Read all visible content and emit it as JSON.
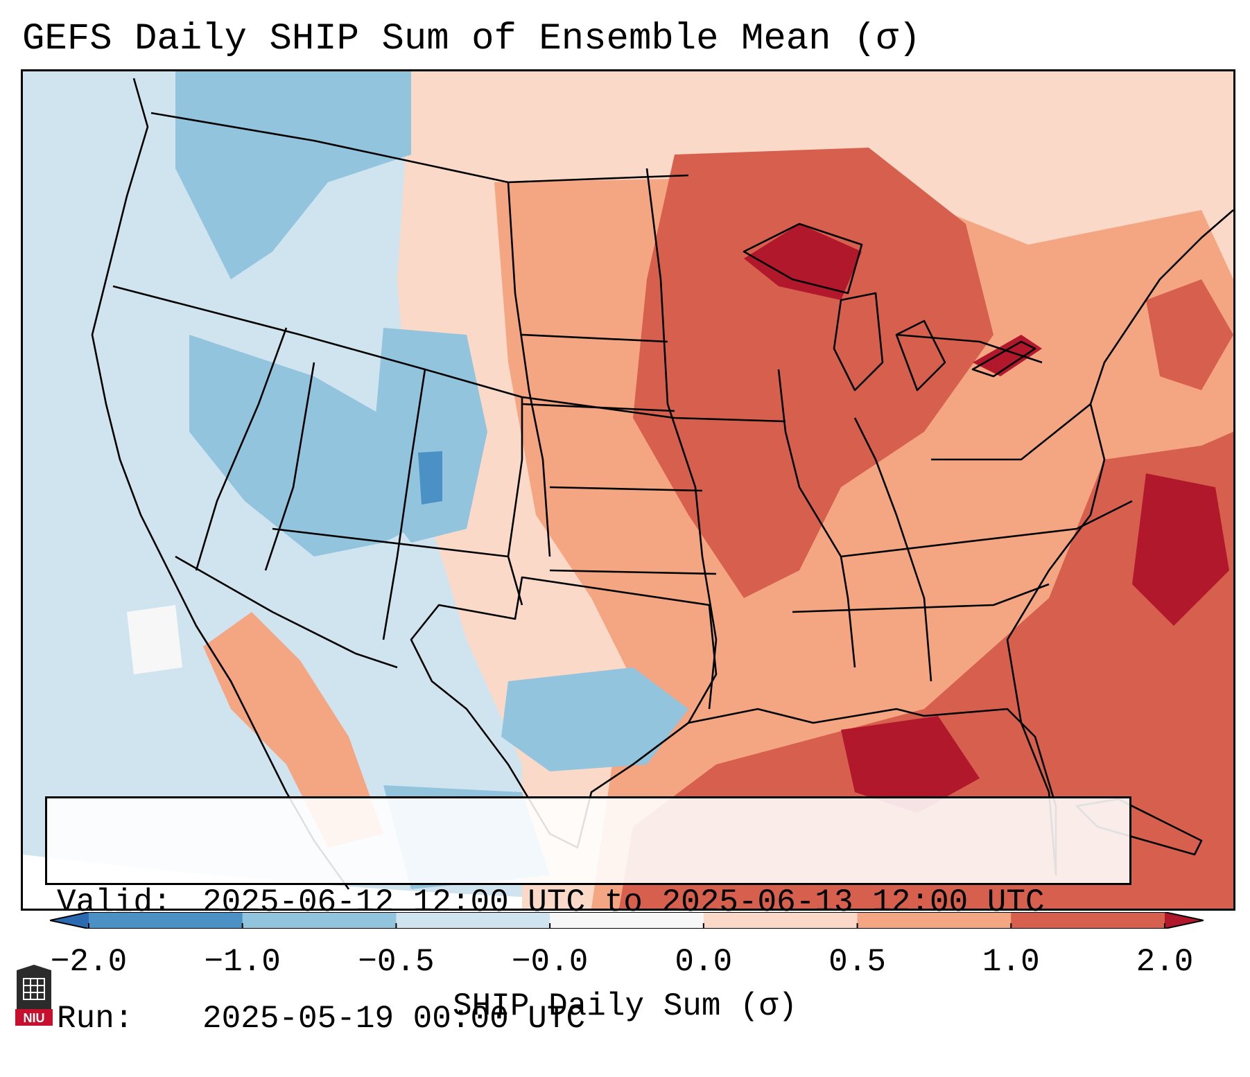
{
  "title": "GEFS Daily SHIP Sum of Ensemble Mean (σ)",
  "info": {
    "valid_label": "Valid:",
    "valid_value": "2025-06-12 12:00 UTC to 2025-06-13 12:00 UTC",
    "run_label": "Run:",
    "run_value": "2025-05-19 00:00 UTC"
  },
  "colorbar": {
    "label": "SHIP Daily Sum (σ)",
    "ticks": [
      "−2.0",
      "−1.0",
      "−0.5",
      "−0.0",
      "0.0",
      "0.5",
      "1.0",
      "2.0"
    ],
    "bins": [
      {
        "range": "< -2.0",
        "color": "#2a6ab0"
      },
      {
        "range": "-2.0 to -1.0",
        "color": "#4c91c6"
      },
      {
        "range": "-1.0 to -0.5",
        "color": "#92c4de"
      },
      {
        "range": "-0.5 to -0.0",
        "color": "#d0e4f0"
      },
      {
        "range": "-0.0 to 0.0",
        "color": "#f7f7f7"
      },
      {
        "range": "0.0 to 0.5",
        "color": "#fbd9c8"
      },
      {
        "range": "0.5 to 1.0",
        "color": "#f4a582"
      },
      {
        "range": "1.0 to 2.0",
        "color": "#d6604d"
      },
      {
        "range": "> 2.0",
        "color": "#b2182b"
      }
    ]
  },
  "logo": {
    "text": "NIU",
    "icon": "university-seal-icon"
  }
}
